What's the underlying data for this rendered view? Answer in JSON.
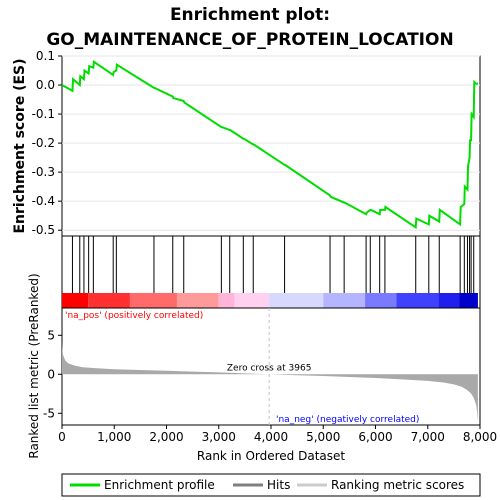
{
  "chart_data": {
    "type": "line",
    "title": "Enrichment plot:",
    "subtitle": "GO_MAINTENANCE_OF_PROTEIN_LOCATION",
    "top_panel": {
      "ylabel": "Enrichment score (ES)",
      "ylim": [
        -0.52,
        0.1
      ],
      "yticks": [
        0.1,
        0.0,
        -0.1,
        -0.2,
        -0.3,
        -0.4,
        -0.5
      ],
      "ytick_labels": [
        "0.1",
        "0.0",
        "-0.1",
        "-0.2",
        "-0.3",
        "-0.4",
        "-0.5"
      ],
      "grid": true,
      "series": [
        {
          "name": "Enrichment profile",
          "color": "#00dd00",
          "x": [
            0,
            200,
            210,
            340,
            350,
            420,
            430,
            510,
            520,
            600,
            610,
            980,
            990,
            1040,
            1050,
            1760,
            1770,
            2120,
            2130,
            2330,
            2340,
            3050,
            3060,
            3210,
            3220,
            3470,
            3480,
            3660,
            3670,
            4260,
            4270,
            5130,
            5140,
            5400,
            5410,
            5820,
            5830,
            5900,
            5910,
            6080,
            6090,
            6180,
            6190,
            6770,
            6780,
            7020,
            7030,
            7220,
            7230,
            7620,
            7630,
            7700,
            7710,
            7760,
            7770,
            7800,
            7810,
            7830,
            7840,
            7880,
            7890,
            7920,
            7960
          ],
          "y": [
            0.0,
            -0.02,
            0.02,
            0.0,
            0.03,
            0.02,
            0.05,
            0.04,
            0.065,
            0.06,
            0.08,
            0.035,
            0.045,
            0.05,
            0.07,
            -0.01,
            -0.01,
            -0.04,
            -0.045,
            -0.055,
            -0.06,
            -0.145,
            -0.145,
            -0.155,
            -0.155,
            -0.185,
            -0.185,
            -0.205,
            -0.205,
            -0.275,
            -0.275,
            -0.38,
            -0.385,
            -0.405,
            -0.405,
            -0.445,
            -0.44,
            -0.43,
            -0.43,
            -0.445,
            -0.43,
            -0.43,
            -0.42,
            -0.49,
            -0.46,
            -0.48,
            -0.45,
            -0.47,
            -0.43,
            -0.48,
            -0.42,
            -0.41,
            -0.35,
            -0.36,
            -0.28,
            -0.25,
            -0.19,
            -0.19,
            -0.1,
            -0.11,
            0.01,
            0.005,
            0.005
          ]
        }
      ]
    },
    "hits": {
      "name": "Hits",
      "positions": [
        200,
        340,
        420,
        510,
        600,
        980,
        1040,
        1760,
        2120,
        2330,
        3050,
        3210,
        3470,
        3660,
        4260,
        5130,
        5400,
        5820,
        5900,
        6080,
        6180,
        6770,
        7020,
        7220,
        7620,
        7700,
        7760,
        7800,
        7830,
        7880
      ]
    },
    "bottom_panel": {
      "ylabel": "Ranked list metric (PreRanked)",
      "xlabel": "Rank in Ordered Dataset",
      "ylim": [
        -6.5,
        8.5
      ],
      "yticks": [
        5,
        0,
        -5
      ],
      "ytick_labels": [
        "5",
        "0",
        "-5"
      ],
      "xlim": [
        0,
        8000
      ],
      "xticks": [
        0,
        1000,
        2000,
        3000,
        4000,
        5000,
        6000,
        7000,
        8000
      ],
      "xtick_labels": [
        "0",
        "1,000",
        "2,000",
        "3,000",
        "4,000",
        "5,000",
        "6,000",
        "7,000",
        "8,000"
      ],
      "zero_cross": 3965,
      "zero_cross_label": "Zero cross at 3965",
      "pos_label": "'na_pos' (positively correlated)",
      "neg_label": "'na_neg' (negatively correlated)",
      "series": [
        {
          "name": "Ranking metric scores",
          "color": "#a9a9a9",
          "x": [
            0,
            5,
            20,
            60,
            120,
            250,
            400,
            700,
            1000,
            1500,
            2000,
            2500,
            3000,
            3500,
            3965,
            4500,
            5000,
            5500,
            6000,
            6500,
            7000,
            7300,
            7500,
            7650,
            7750,
            7820,
            7870,
            7900,
            7930,
            7945,
            7955,
            7960
          ],
          "y": [
            4.3,
            3.3,
            2.5,
            1.8,
            1.4,
            1.1,
            0.9,
            0.75,
            0.65,
            0.55,
            0.45,
            0.35,
            0.25,
            0.12,
            0.0,
            -0.12,
            -0.22,
            -0.35,
            -0.48,
            -0.65,
            -0.85,
            -1.05,
            -1.3,
            -1.6,
            -2.0,
            -2.4,
            -2.9,
            -3.4,
            -4.0,
            -4.8,
            -5.6,
            -6.0
          ]
        }
      ]
    },
    "colorbar": {
      "segments": [
        {
          "from": 0,
          "to": 500,
          "color": "#ff0000"
        },
        {
          "from": 500,
          "to": 1300,
          "color": "#ff3030"
        },
        {
          "from": 1300,
          "to": 2200,
          "color": "#ff6a6a"
        },
        {
          "from": 2200,
          "to": 3000,
          "color": "#ff9a9a"
        },
        {
          "from": 3000,
          "to": 3300,
          "color": "#ffb4d8"
        },
        {
          "from": 3300,
          "to": 3965,
          "color": "#ffd0f0"
        },
        {
          "from": 3965,
          "to": 5000,
          "color": "#d8d8ff"
        },
        {
          "from": 5000,
          "to": 5800,
          "color": "#b4b4ff"
        },
        {
          "from": 5800,
          "to": 6400,
          "color": "#7a7aff"
        },
        {
          "from": 6400,
          "to": 7200,
          "color": "#4040ff"
        },
        {
          "from": 7200,
          "to": 7600,
          "color": "#2020ee"
        },
        {
          "from": 7600,
          "to": 7960,
          "color": "#0000cc"
        }
      ]
    },
    "legend": {
      "placement": "bottom",
      "items": [
        {
          "label": "Enrichment profile",
          "color": "#00dd00"
        },
        {
          "label": "Hits",
          "color": "#808080"
        },
        {
          "label": "Ranking metric scores",
          "color": "#cccccc"
        }
      ]
    }
  }
}
